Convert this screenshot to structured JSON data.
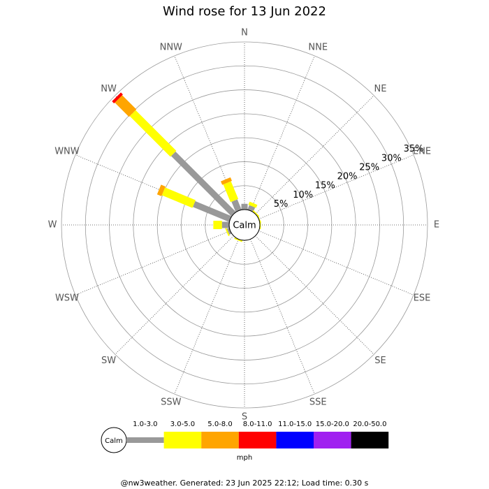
{
  "chart_data": {
    "type": "windrose",
    "title": "Wind rose for 13 Jun 2022",
    "calm_label": "Calm",
    "units": "mph",
    "footer": "@nw3weather. Generated: 23 Jun 2025 22:12; Load time: 0.30 s",
    "directions": [
      "N",
      "NNE",
      "NE",
      "ENE",
      "E",
      "ESE",
      "SE",
      "SSE",
      "S",
      "SSW",
      "SW",
      "WSW",
      "W",
      "WNW",
      "NW",
      "NNW"
    ],
    "rlim": [
      0,
      35
    ],
    "rticks": [
      {
        "value": 5,
        "label": "5%"
      },
      {
        "value": 10,
        "label": "10%"
      },
      {
        "value": 15,
        "label": "15%"
      },
      {
        "value": 20,
        "label": "20%"
      },
      {
        "value": 25,
        "label": "25%"
      },
      {
        "value": 30,
        "label": "30%"
      },
      {
        "value": 35,
        "label": "35%"
      }
    ],
    "series": [
      {
        "name": "1.0-3.0",
        "color": "#999999",
        "values": [
          1.2,
          1,
          0,
          0,
          0,
          0,
          0,
          0,
          0,
          0,
          0,
          0.5,
          1.5,
          8.2,
          17.8,
          2.3
        ]
      },
      {
        "name": "3.0-5.0",
        "color": "#ffff00",
        "values": [
          0,
          0.7,
          0.3,
          0.2,
          0.2,
          0,
          0,
          0,
          0,
          0.3,
          0,
          0.3,
          1.8,
          6.9,
          12,
          4
        ]
      },
      {
        "name": "5.0-8.0",
        "color": "#ffa500",
        "values": [
          0,
          0,
          0,
          0,
          0,
          0,
          0,
          0,
          0,
          0,
          0,
          0,
          0,
          1,
          4.2,
          0.8
        ]
      },
      {
        "name": "8.0-11.0",
        "color": "#ff0000",
        "values": [
          0,
          0,
          0,
          0,
          0,
          0,
          0,
          0,
          0,
          0,
          0,
          0,
          0,
          0,
          0.6,
          0
        ]
      },
      {
        "name": "11.0-15.0",
        "color": "#0000ff",
        "values": [
          0,
          0,
          0,
          0,
          0,
          0,
          0,
          0,
          0,
          0,
          0,
          0,
          0,
          0,
          0,
          0
        ]
      },
      {
        "name": "15.0-20.0",
        "color": "#a020f0",
        "values": [
          0,
          0,
          0,
          0,
          0,
          0,
          0,
          0,
          0,
          0,
          0,
          0,
          0,
          0,
          0,
          0
        ]
      },
      {
        "name": "20.0-50.0",
        "color": "#000000",
        "values": [
          0,
          0,
          0,
          0,
          0,
          0,
          0,
          0,
          0,
          0,
          0,
          0,
          0,
          0,
          0,
          0
        ]
      }
    ]
  }
}
